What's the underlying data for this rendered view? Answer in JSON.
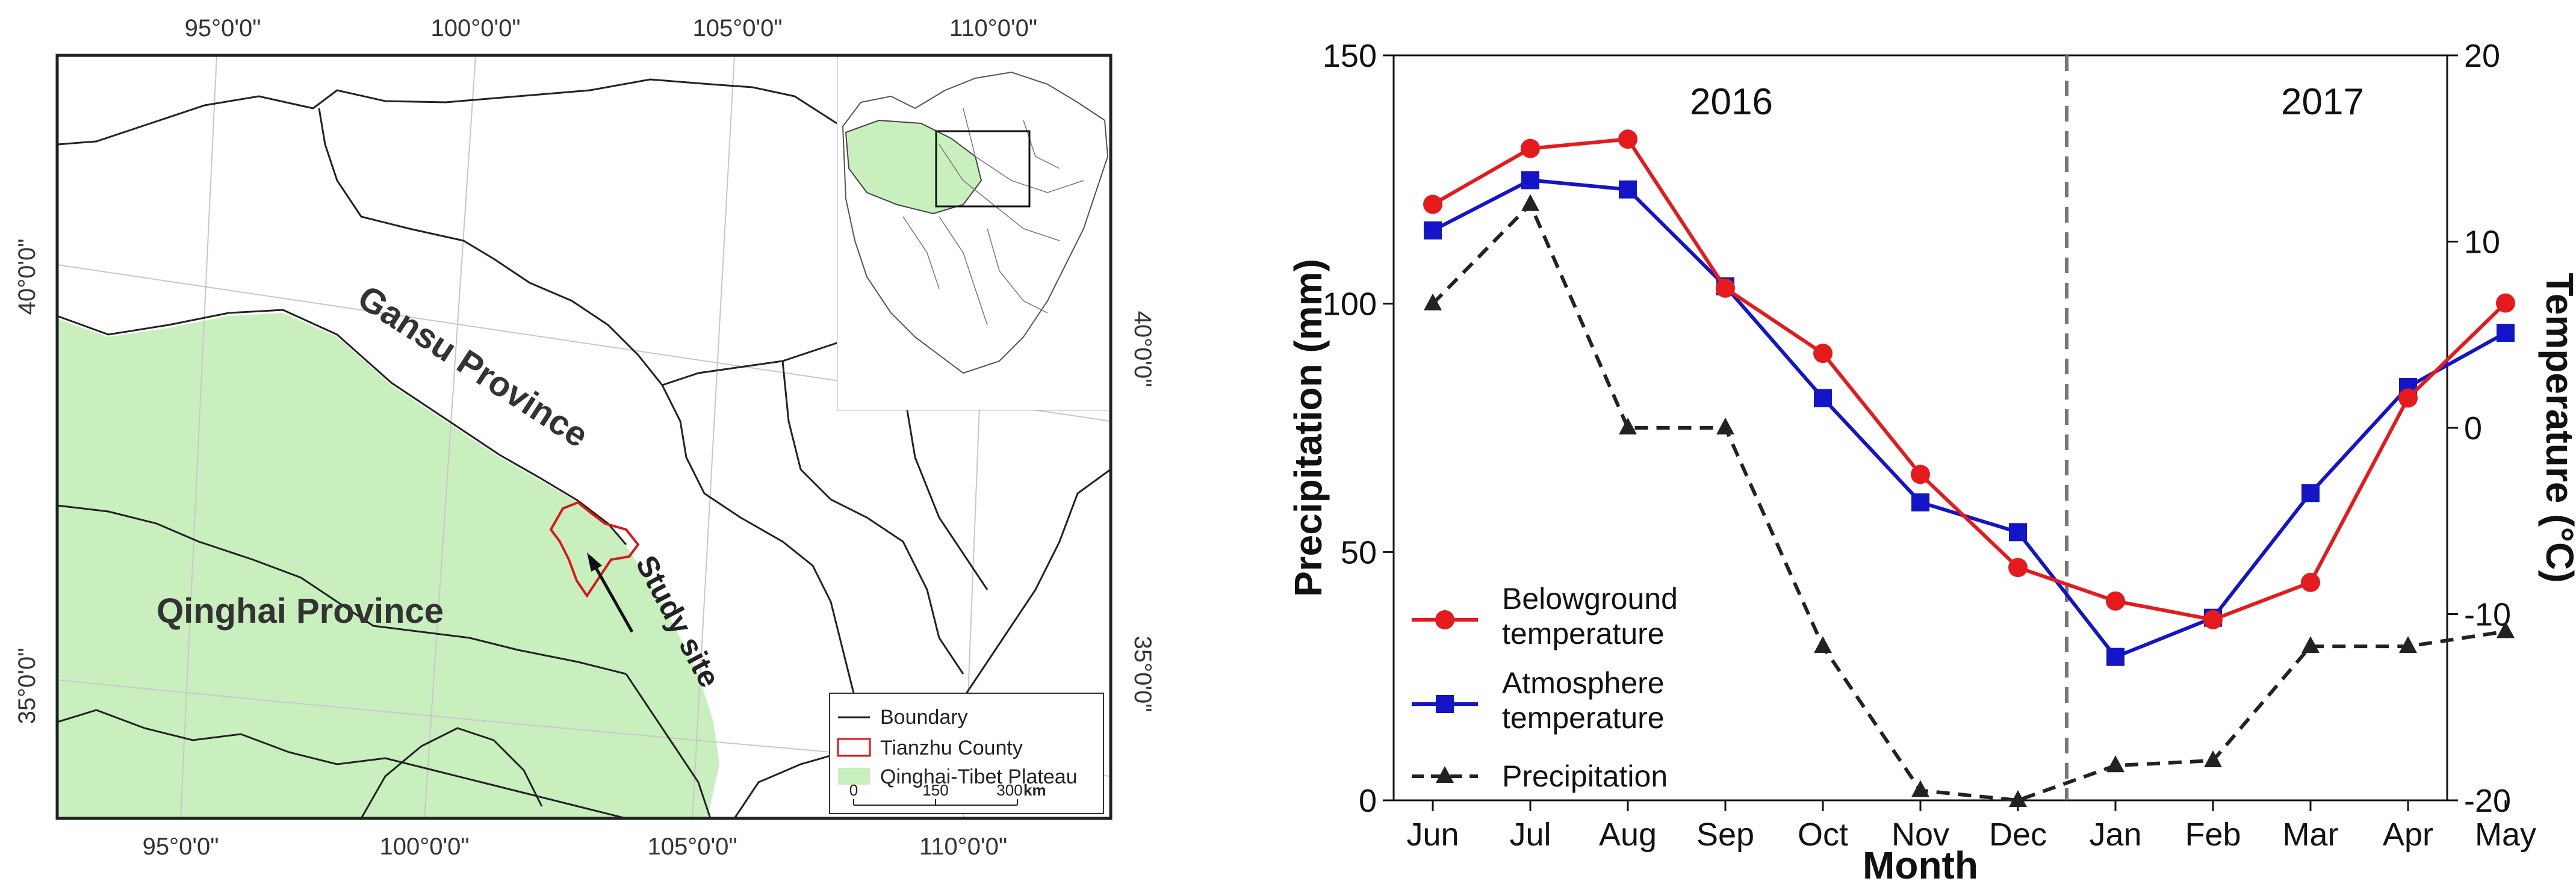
{
  "map": {
    "lon_labels": [
      "95°0'0\"",
      "100°0'0\"",
      "105°0'0\"",
      "110°0'0\""
    ],
    "lat_labels": [
      "40°0'0\"",
      "35°0'0\""
    ],
    "province_gansu": "Gansu Province",
    "province_qinghai": "Qinghai Province",
    "study_site": "Study site",
    "legend": {
      "boundary": "Boundary",
      "county": "Tianzhu County",
      "plateau": "Qinghai-Tibet Plateau",
      "scale_ticks": [
        "0",
        "150",
        "300"
      ],
      "scale_unit": "km"
    },
    "colors": {
      "plateau": "#c9efbf",
      "county": "#d7191c",
      "line": "#222222",
      "grid": "#c8c8c8"
    }
  },
  "chart_data": {
    "type": "line",
    "title": "",
    "xlabel": "Month",
    "ylabel": "Precipitation (mm)",
    "y2label": "Temperature (°C)",
    "categories": [
      "Jun",
      "Jul",
      "Aug",
      "Sep",
      "Oct",
      "Nov",
      "Dec",
      "Jan",
      "Feb",
      "Mar",
      "Apr",
      "May"
    ],
    "ylim": [
      0,
      150
    ],
    "yticks": [
      0,
      50,
      100,
      150
    ],
    "y2lim": [
      -20,
      20
    ],
    "y2ticks": [
      -20,
      -10,
      0,
      10,
      20
    ],
    "year_labels": [
      "2016",
      "2017"
    ],
    "series": [
      {
        "name": "Belowground temperature",
        "axis": "right",
        "color": "#e41a1c",
        "marker": "circle",
        "dash": false,
        "values": [
          12.0,
          15.0,
          15.5,
          7.5,
          4.0,
          -2.5,
          -7.5,
          -9.3,
          -10.3,
          -8.3,
          1.6,
          6.7
        ]
      },
      {
        "name": "Atmosphere temperature",
        "axis": "right",
        "color": "#1414c8",
        "marker": "square",
        "dash": false,
        "values": [
          10.6,
          13.3,
          12.8,
          7.6,
          1.6,
          -4.0,
          -5.6,
          -12.3,
          -10.2,
          -3.5,
          2.2,
          5.1
        ]
      },
      {
        "name": "Precipitation",
        "axis": "left",
        "color": "#222222",
        "marker": "triangle",
        "dash": true,
        "values": [
          100,
          120,
          75,
          75,
          31,
          2,
          0,
          7,
          8,
          31,
          31,
          34
        ]
      }
    ],
    "legend": {
      "position": "lower-left",
      "labels": [
        [
          "Belowground",
          "temperature"
        ],
        [
          "Atmosphere",
          "temperature"
        ],
        [
          "Precipitation"
        ]
      ]
    },
    "grid": false
  }
}
